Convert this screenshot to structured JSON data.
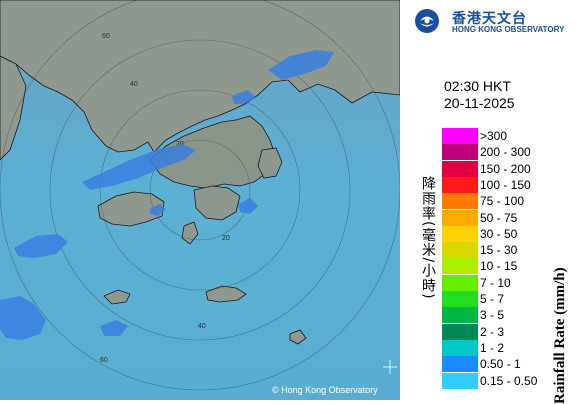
{
  "header": {
    "org_name_zh": "香港天文台",
    "org_name_en": "HONG KONG OBSERVATORY"
  },
  "timestamp": {
    "time": "02:30 HKT",
    "date": "20-11-2025"
  },
  "map": {
    "credit": "© Hong Kong Observatory",
    "range_ring_labels": [
      "60",
      "40",
      "20",
      "20",
      "40",
      "60"
    ],
    "colors": {
      "sea": "#5fa8d0",
      "land": "#8e9a8e",
      "radar_echo": "#2f7fe0"
    }
  },
  "legend": {
    "unit_zh": "降雨率(毫米/小時)",
    "unit_en": "Rainfall Rate (mm/h)",
    "items": [
      {
        "label": ">300",
        "color": "#ff00ff"
      },
      {
        "label": "200 - 300",
        "color": "#c0007a"
      },
      {
        "label": "150 - 200",
        "color": "#e00040"
      },
      {
        "label": "100 - 150",
        "color": "#ff1a1a"
      },
      {
        "label": "75 - 100",
        "color": "#ff7a00"
      },
      {
        "label": "50 - 75",
        "color": "#ffaa00"
      },
      {
        "label": "30 - 50",
        "color": "#ffd200"
      },
      {
        "label": "15 - 30",
        "color": "#d8d800"
      },
      {
        "label": "10 - 15",
        "color": "#aaee00"
      },
      {
        "label": "7 - 10",
        "color": "#66ee00"
      },
      {
        "label": "5 - 7",
        "color": "#22dd22"
      },
      {
        "label": "3 - 5",
        "color": "#00b844"
      },
      {
        "label": "2 - 3",
        "color": "#008855"
      },
      {
        "label": "1 - 2",
        "color": "#00c8c8"
      },
      {
        "label": "0.50 - 1",
        "color": "#1a8cff"
      },
      {
        "label": "0.15 - 0.50",
        "color": "#33ccff"
      }
    ]
  }
}
